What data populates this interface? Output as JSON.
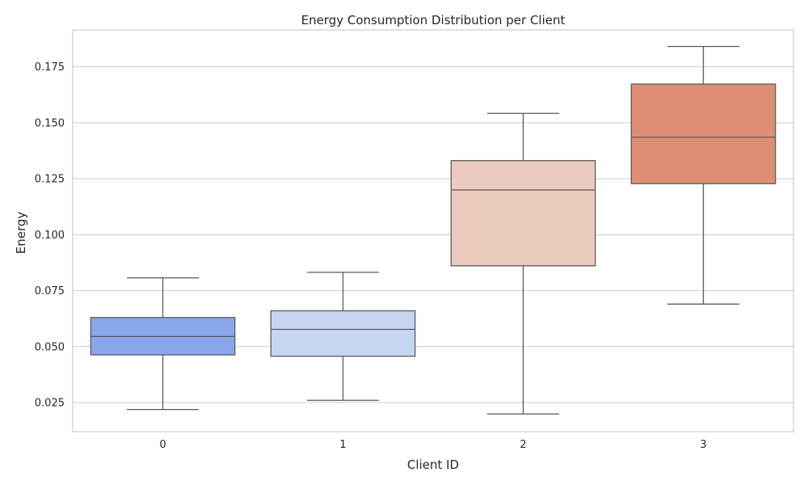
{
  "chart_data": {
    "type": "boxplot",
    "title": "Energy Consumption Distribution per Client",
    "xlabel": "Client ID",
    "ylabel": "Energy",
    "categories": [
      "0",
      "1",
      "2",
      "3"
    ],
    "y_ticks": [
      "0.025",
      "0.050",
      "0.075",
      "0.100",
      "0.125",
      "0.150",
      "0.175"
    ],
    "y_tick_values": [
      0.025,
      0.05,
      0.075,
      0.1,
      0.125,
      0.15,
      0.175
    ],
    "ylim": [
      0.012,
      0.1915
    ],
    "grid": true,
    "boxes": [
      {
        "category": "0",
        "min": 0.0219,
        "q1": 0.0463,
        "median": 0.0545,
        "q3": 0.063,
        "max": 0.0807,
        "color": "#8aa7ed"
      },
      {
        "category": "1",
        "min": 0.026,
        "q1": 0.0457,
        "median": 0.0577,
        "q3": 0.066,
        "max": 0.0832,
        "color": "#c6d5f1"
      },
      {
        "category": "2",
        "min": 0.0199,
        "q1": 0.0861,
        "median": 0.12,
        "q3": 0.1331,
        "max": 0.1542,
        "color": "#eacbbd"
      },
      {
        "category": "3",
        "min": 0.069,
        "q1": 0.1228,
        "median": 0.1436,
        "q3": 0.1673,
        "max": 0.1841,
        "color": "#df8e76"
      }
    ]
  }
}
